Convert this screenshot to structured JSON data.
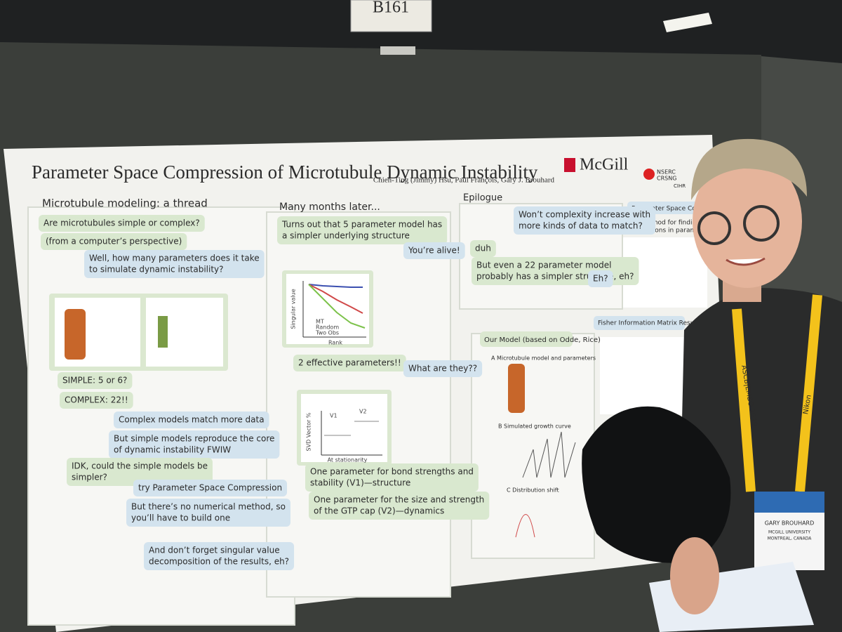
{
  "sign": "B161",
  "poster": {
    "title": "Parameter Space Compression of Microtubule Dynamic Instability",
    "authors": "Chieh-Ting (Jimmy) Hsu, Paul François, Gary J. Brouhard",
    "logo": "McGill",
    "funders": [
      "NSERC",
      "CRSNG",
      "CIHR"
    ],
    "columns": [
      {
        "heading": "Microtubule modeling: a thread",
        "messages": [
          [
            "Are microtubules simple or complex?"
          ],
          [
            "(from a computer’s perspective)"
          ],
          [
            "Well, how many parameters does it take",
            "to simulate dynamic instability?"
          ],
          [
            "SIMPLE: 5 or 6?"
          ],
          [
            "COMPLEX: 22!!"
          ],
          [
            "Complex models match more data"
          ],
          [
            "But simple models reproduce the core",
            "of dynamic instability FWIW"
          ],
          [
            "IDK, could the simple models be",
            "simpler?"
          ],
          [
            "try Parameter Space Compression"
          ],
          [
            "But there’s no numerical method, so",
            "you’ll have to build one"
          ],
          [
            "And don’t forget singular value",
            "decomposition of the results, eh?"
          ]
        ]
      },
      {
        "heading": "Many months later...",
        "messages": [
          [
            "Turns out that 5 parameter model has",
            "a simpler underlying structure"
          ],
          [
            "You’re alive!"
          ],
          [
            "2 effective parameters!!"
          ],
          [
            "What are they??"
          ],
          [
            "One parameter for bond strengths and",
            "stability (V1)—structure"
          ],
          [
            "One parameter for the size and strength",
            "of the GTP cap (V2)—dynamics"
          ]
        ]
      },
      {
        "heading": "Epilogue",
        "messages": [
          [
            "Won’t complexity increase with",
            "more kinds of data to match?"
          ],
          [
            "duh"
          ],
          [
            "But even a 22 parameter model",
            "probably has a simpler structure, eh?"
          ],
          [
            "Eh?"
          ]
        ]
      }
    ],
    "singular_value_plot": {
      "y_label": "Singular value",
      "x_label": "Rank",
      "legend": [
        "MT",
        "Random",
        "Two Obs"
      ]
    },
    "svd_plot": {
      "y_label": "SVD Vector %",
      "x_label": "At stationarity",
      "panels": [
        "V1",
        "V2"
      ]
    },
    "model": {
      "heading": "Our Model (based on Odde, Rice)",
      "sections": [
        "A  Microtubule model and parameters",
        "B  Simulated growth curve",
        "C  Distribution shift"
      ]
    },
    "side": {
      "heading": "Parameter Space Compr",
      "text": [
        "A method for finding dom",
        "directions in parameter s"
      ],
      "results": "Fisher Information Matrix Results"
    }
  },
  "badge": {
    "name": "GARY BROUHARD",
    "affiliation": "MCGILL UNIVERSITY",
    "city": "MONTREAL, CANADA"
  },
  "lanyard": [
    "ASCB|EMBO 2019",
    "Nikon"
  ]
}
